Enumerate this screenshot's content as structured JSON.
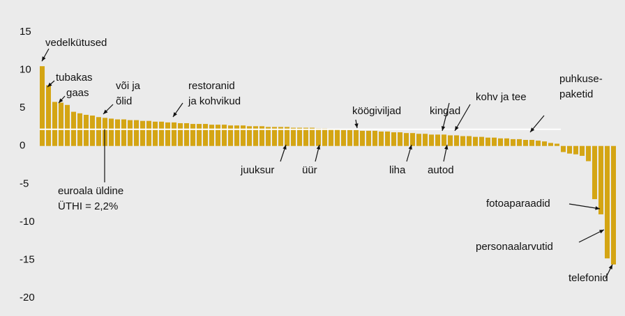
{
  "chart_data": {
    "type": "bar",
    "categories": [
      null,
      null,
      null,
      null,
      null,
      null,
      null,
      null,
      null,
      null,
      null,
      null,
      null,
      null,
      null,
      null,
      null,
      null,
      null,
      null,
      null,
      null,
      null,
      null,
      null,
      null,
      null,
      null,
      null,
      null,
      null,
      null,
      null,
      null,
      null,
      null,
      null,
      null,
      null,
      null,
      null,
      null,
      null,
      null,
      null,
      null,
      null,
      null,
      null,
      null,
      null,
      null,
      null,
      null,
      null,
      null,
      null,
      null,
      null,
      null,
      null,
      null,
      null,
      null,
      null,
      null,
      null,
      null,
      null,
      null,
      null,
      null,
      null,
      null,
      null,
      null,
      null,
      null,
      null,
      null,
      null,
      null,
      null,
      null,
      null,
      null,
      null,
      null,
      null,
      null,
      null,
      null
    ],
    "values": [
      10.5,
      8.0,
      5.8,
      5.7,
      5.4,
      4.5,
      4.3,
      4.1,
      4.0,
      3.8,
      3.7,
      3.6,
      3.5,
      3.5,
      3.4,
      3.4,
      3.3,
      3.3,
      3.2,
      3.2,
      3.1,
      3.1,
      3.0,
      3.0,
      2.9,
      2.9,
      2.9,
      2.8,
      2.8,
      2.8,
      2.7,
      2.7,
      2.7,
      2.6,
      2.6,
      2.6,
      2.5,
      2.5,
      2.5,
      2.5,
      2.4,
      2.4,
      2.4,
      2.4,
      2.3,
      2.3,
      2.2,
      2.2,
      2.1,
      2.1,
      2.1,
      2.0,
      2.0,
      2.0,
      1.9,
      1.9,
      1.8,
      1.8,
      1.7,
      1.7,
      1.6,
      1.6,
      1.5,
      1.5,
      1.5,
      1.4,
      1.4,
      1.3,
      1.3,
      1.2,
      1.2,
      1.1,
      1.1,
      1.0,
      1.0,
      0.9,
      0.9,
      0.8,
      0.8,
      0.7,
      0.6,
      0.4,
      0.3,
      -0.8,
      -1.0,
      -1.1,
      -1.3,
      -2.0,
      -7.0,
      -9.0,
      -14.8,
      -15.6
    ],
    "color": "#d4a514",
    "ylim": [
      -20,
      15
    ],
    "yticks": [
      -20,
      -15,
      -10,
      -5,
      0,
      5,
      10,
      15
    ],
    "reference_line": 2.2,
    "annotations": [
      {
        "lines": [
          "vedelkütused"
        ]
      },
      {
        "lines": [
          "tubakas"
        ]
      },
      {
        "lines": [
          "gaas"
        ]
      },
      {
        "lines": [
          "või ja",
          "õlid"
        ]
      },
      {
        "lines": [
          "restoranid",
          "ja kohvikud"
        ]
      },
      {
        "lines": [
          "köögiviljad"
        ]
      },
      {
        "lines": [
          "kingad"
        ]
      },
      {
        "lines": [
          "kohv ja tee"
        ]
      },
      {
        "lines": [
          "puhkuse-",
          "paketid"
        ]
      },
      {
        "lines": [
          "juuksur"
        ]
      },
      {
        "lines": [
          "üür"
        ]
      },
      {
        "lines": [
          "liha"
        ]
      },
      {
        "lines": [
          "autod"
        ]
      },
      {
        "lines": [
          "euroala üldine",
          "ÜTHI = 2,2%"
        ]
      },
      {
        "lines": [
          "fotoaparaadid"
        ]
      },
      {
        "lines": [
          "personaalarvutid"
        ]
      },
      {
        "lines": [
          "telefonid"
        ]
      }
    ]
  }
}
